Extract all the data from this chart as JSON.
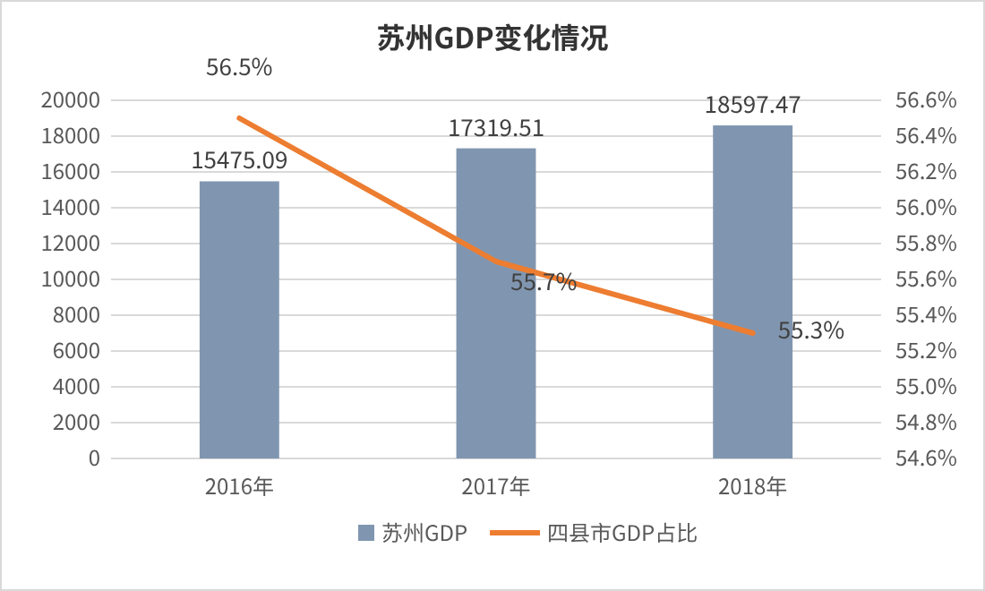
{
  "chart_data": {
    "type": "bar",
    "title": "苏州GDP变化情况",
    "categories": [
      "2016年",
      "2017年",
      "2018年"
    ],
    "series": [
      {
        "name": "苏州GDP",
        "color": "#8096b0",
        "values": [
          15475.09,
          17319.51,
          18597.47
        ],
        "value_labels": [
          "15475.09",
          "17319.51",
          "18597.47"
        ]
      },
      {
        "name": "四县市GDP占比",
        "type": "line",
        "axis": "y2",
        "color": "#ed7d31",
        "values": [
          56.5,
          55.7,
          55.3
        ],
        "value_labels": [
          "56.5%",
          "55.7%",
          "55.3%"
        ],
        "marker": "none"
      }
    ],
    "ylim": [
      0,
      20000
    ],
    "yticks": [
      0,
      2000,
      4000,
      6000,
      8000,
      10000,
      12000,
      14000,
      16000,
      18000,
      20000
    ],
    "y2lim": [
      54.6,
      56.6
    ],
    "y2ticks": [
      {
        "value": 54.6,
        "label": "54.6%"
      },
      {
        "value": 54.8,
        "label": "54.8%"
      },
      {
        "value": 55.0,
        "label": "55.0%"
      },
      {
        "value": 55.2,
        "label": "55.2%"
      },
      {
        "value": 55.4,
        "label": "55.4%"
      },
      {
        "value": 55.6,
        "label": "55.6%"
      },
      {
        "value": 55.8,
        "label": "55.8%"
      },
      {
        "value": 56.0,
        "label": "56.0%"
      },
      {
        "value": 56.2,
        "label": "56.2%"
      },
      {
        "value": 56.4,
        "label": "56.4%"
      },
      {
        "value": 56.6,
        "label": "56.6%"
      }
    ],
    "grid": "y",
    "legend": "bottom"
  }
}
